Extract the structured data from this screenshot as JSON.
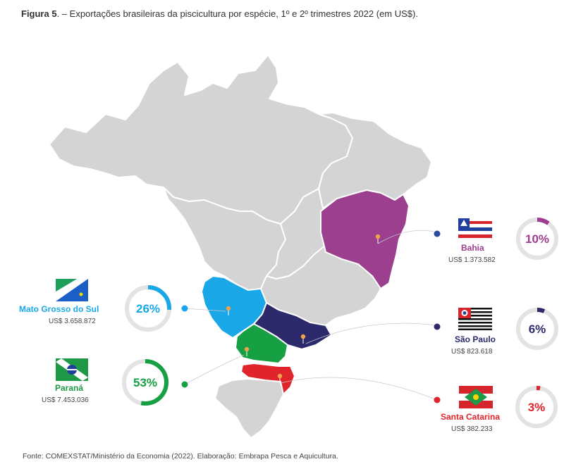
{
  "figure": {
    "title_bold": "Figura 5",
    "title_rest": ". – Exportações brasileiras da piscicultura por espécie, 1º e 2º trimestres 2022 (em US$).",
    "source": "Fonte: COMEXSTAT/Ministério da Economia (2022). Elaboração: Embrapa Pesca e Aquicultura."
  },
  "states": [
    {
      "name": "Bahia",
      "value": "US$ 1.373.582",
      "percent_label": "10%",
      "share": 0.1,
      "color": "#9b3f8e",
      "flag": "bahia-flag"
    },
    {
      "name": "Mato Grosso do Sul",
      "value": "US$ 3.658.872",
      "percent_label": "26%",
      "share": 0.26,
      "color": "#1aa7e8",
      "flag": "mato-grosso-do-sul-flag"
    },
    {
      "name": "São Paulo",
      "value": "US$ 823.618",
      "percent_label": "6%",
      "share": 0.06,
      "color": "#2c2a6b",
      "flag": "sao-paulo-flag"
    },
    {
      "name": "Paraná",
      "value": "US$ 7.453.036",
      "percent_label": "53%",
      "share": 0.53,
      "color": "#17a043",
      "flag": "parana-flag"
    },
    {
      "name": "Santa Catarina",
      "value": "US$ 382.233",
      "percent_label": "3%",
      "share": 0.03,
      "color": "#e0242c",
      "flag": "santa-catarina-flag"
    }
  ]
}
